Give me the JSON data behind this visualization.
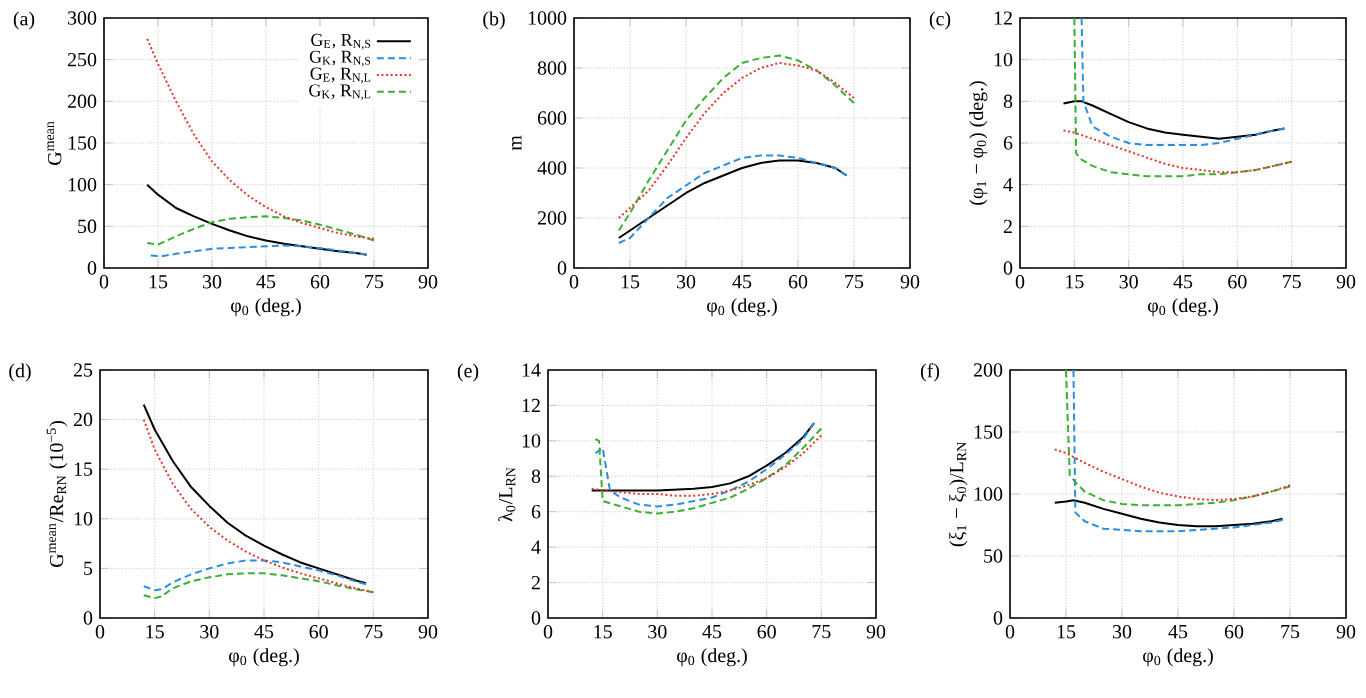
{
  "chart_data": [
    {
      "type": "line",
      "title": "(a)",
      "xlabel": "φ$_{0}$ (deg.)",
      "ylabel": "G$^{mean}$",
      "xlim": [
        0,
        90
      ],
      "ylim": [
        0,
        300
      ],
      "xticks": [
        0,
        15,
        30,
        45,
        60,
        75,
        90
      ],
      "yticks": [
        0,
        50,
        100,
        150,
        200,
        250,
        300
      ],
      "grid": true,
      "legend": "top right",
      "series": [
        {
          "name": "G$_{E}$, R$_{N,S}$",
          "color": "#000000",
          "line_style": "solid",
          "x": [
            12,
            15,
            20,
            25,
            30,
            35,
            40,
            45,
            50,
            55,
            60,
            65,
            70,
            73
          ],
          "values": [
            100,
            88,
            72,
            62,
            53,
            45,
            38,
            33,
            29,
            26,
            23,
            20,
            18,
            16
          ]
        },
        {
          "name": "G$_{K}$, R$_{N,S}$",
          "color": "#2b8ee0",
          "line_style": "dashed",
          "x": [
            13,
            16,
            20,
            25,
            30,
            35,
            40,
            45,
            50,
            55,
            60,
            65,
            70,
            73
          ],
          "values": [
            15,
            14,
            17,
            20,
            23,
            24,
            25,
            26,
            27,
            26,
            24,
            21,
            18,
            16
          ]
        },
        {
          "name": "G$_{E}$, R$_{N,L}$",
          "color": "#e8322a",
          "line_style": "dotted",
          "x": [
            12,
            15,
            20,
            25,
            30,
            35,
            40,
            45,
            50,
            55,
            60,
            65,
            70,
            75
          ],
          "values": [
            275,
            245,
            200,
            160,
            128,
            105,
            87,
            73,
            62,
            54,
            48,
            42,
            38,
            35
          ]
        },
        {
          "name": "G$_{K}$, R$_{N,L}$",
          "color": "#3cb034",
          "line_style": "dashed",
          "x": [
            12,
            15,
            20,
            25,
            30,
            35,
            40,
            45,
            50,
            55,
            60,
            65,
            70,
            75
          ],
          "values": [
            30,
            28,
            38,
            47,
            55,
            59,
            61,
            62,
            60,
            57,
            52,
            46,
            40,
            33
          ]
        }
      ]
    },
    {
      "type": "line",
      "title": "(b)",
      "xlabel": "φ$_{0}$ (deg.)",
      "ylabel": "m",
      "xlim": [
        0,
        90
      ],
      "ylim": [
        0,
        1000
      ],
      "xticks": [
        0,
        15,
        30,
        45,
        60,
        75,
        90
      ],
      "yticks": [
        0,
        200,
        400,
        600,
        800,
        1000
      ],
      "grid": true,
      "series": [
        {
          "color": "#000000",
          "line_style": "solid",
          "x": [
            12,
            15,
            20,
            25,
            30,
            35,
            40,
            45,
            50,
            55,
            60,
            65,
            70,
            73
          ],
          "values": [
            120,
            150,
            200,
            250,
            300,
            340,
            370,
            400,
            420,
            430,
            430,
            420,
            400,
            370
          ]
        },
        {
          "color": "#2b8ee0",
          "line_style": "dashed",
          "x": [
            12,
            15,
            20,
            25,
            30,
            35,
            40,
            45,
            50,
            55,
            60,
            65,
            70,
            73
          ],
          "values": [
            100,
            120,
            200,
            280,
            330,
            380,
            410,
            440,
            450,
            450,
            440,
            420,
            400,
            370
          ]
        },
        {
          "color": "#e8322a",
          "line_style": "dotted",
          "x": [
            12,
            15,
            20,
            25,
            30,
            35,
            40,
            45,
            50,
            55,
            60,
            65,
            70,
            75
          ],
          "values": [
            200,
            240,
            310,
            410,
            520,
            620,
            700,
            760,
            800,
            820,
            810,
            790,
            740,
            680
          ]
        },
        {
          "color": "#3cb034",
          "line_style": "dashed",
          "x": [
            12,
            15,
            20,
            25,
            30,
            35,
            40,
            45,
            50,
            55,
            60,
            65,
            70,
            75
          ],
          "values": [
            150,
            220,
            350,
            470,
            590,
            680,
            760,
            820,
            840,
            850,
            830,
            790,
            730,
            660
          ]
        }
      ]
    },
    {
      "type": "line",
      "title": "(c)",
      "xlabel": "φ$_{0}$ (deg.)",
      "ylabel": "(φ$_{1}$ − φ$_{0}$) (deg.)",
      "xlim": [
        0,
        90
      ],
      "ylim": [
        0,
        12
      ],
      "xticks": [
        0,
        15,
        30,
        45,
        60,
        75,
        90
      ],
      "yticks": [
        0,
        2,
        4,
        6,
        8,
        10,
        12
      ],
      "grid": true,
      "series": [
        {
          "color": "#000000",
          "line_style": "solid",
          "x": [
            12,
            15,
            17,
            20,
            25,
            30,
            35,
            40,
            45,
            50,
            55,
            60,
            65,
            70,
            73
          ],
          "values": [
            7.9,
            8.0,
            8.0,
            7.8,
            7.4,
            7.0,
            6.7,
            6.5,
            6.4,
            6.3,
            6.2,
            6.3,
            6.4,
            6.6,
            6.7
          ]
        },
        {
          "color": "#2b8ee0",
          "line_style": "dashed",
          "x": [
            17,
            17.5,
            20,
            25,
            30,
            35,
            40,
            45,
            50,
            55,
            60,
            65,
            70,
            73
          ],
          "values": [
            12,
            8,
            6.8,
            6.3,
            6.0,
            5.9,
            5.9,
            5.9,
            5.9,
            6.0,
            6.2,
            6.4,
            6.6,
            6.7
          ]
        },
        {
          "color": "#e8322a",
          "line_style": "dotted",
          "x": [
            12,
            15,
            20,
            25,
            30,
            35,
            40,
            45,
            50,
            55,
            60,
            65,
            70,
            75
          ],
          "values": [
            6.6,
            6.5,
            6.2,
            5.9,
            5.6,
            5.3,
            5.0,
            4.8,
            4.7,
            4.6,
            4.6,
            4.7,
            4.9,
            5.1
          ]
        },
        {
          "color": "#3cb034",
          "line_style": "dashed",
          "x": [
            15,
            15.5,
            17,
            20,
            25,
            30,
            35,
            40,
            45,
            50,
            55,
            60,
            65,
            70,
            75
          ],
          "values": [
            12,
            5.5,
            5.2,
            4.9,
            4.6,
            4.5,
            4.4,
            4.4,
            4.4,
            4.5,
            4.5,
            4.6,
            4.7,
            4.9,
            5.1
          ]
        }
      ]
    },
    {
      "type": "line",
      "title": "(d)",
      "xlabel": "φ$_{0}$ (deg.)",
      "ylabel": "G$^{mean}$/Re$_{RN}$ (10$^{−5}$)",
      "xlim": [
        0,
        90
      ],
      "ylim": [
        0,
        25
      ],
      "xticks": [
        0,
        15,
        30,
        45,
        60,
        75,
        90
      ],
      "yticks": [
        0,
        5,
        10,
        15,
        20,
        25
      ],
      "grid": true,
      "series": [
        {
          "color": "#000000",
          "line_style": "solid",
          "x": [
            12,
            15,
            20,
            25,
            30,
            35,
            40,
            45,
            50,
            55,
            60,
            65,
            70,
            73
          ],
          "values": [
            21.5,
            19,
            15.8,
            13.2,
            11.3,
            9.6,
            8.3,
            7.3,
            6.4,
            5.6,
            5.0,
            4.4,
            3.8,
            3.5
          ]
        },
        {
          "color": "#2b8ee0",
          "line_style": "dashed",
          "x": [
            12,
            15,
            17,
            20,
            25,
            30,
            35,
            40,
            45,
            50,
            55,
            60,
            65,
            70,
            73
          ],
          "values": [
            3.2,
            2.8,
            2.9,
            3.6,
            4.4,
            5.0,
            5.5,
            5.8,
            5.8,
            5.6,
            5.2,
            4.8,
            4.3,
            3.7,
            3.4
          ]
        },
        {
          "color": "#e8322a",
          "line_style": "dotted",
          "x": [
            12,
            15,
            20,
            25,
            30,
            35,
            40,
            45,
            50,
            55,
            60,
            65,
            70,
            75
          ],
          "values": [
            20,
            17,
            13.5,
            11,
            9.2,
            7.8,
            6.7,
            5.8,
            5.1,
            4.5,
            4.0,
            3.5,
            3.0,
            2.6
          ]
        },
        {
          "color": "#3cb034",
          "line_style": "dashed",
          "x": [
            12,
            15,
            17,
            20,
            25,
            30,
            35,
            40,
            45,
            50,
            55,
            60,
            65,
            70,
            75
          ],
          "values": [
            2.3,
            2.0,
            2.2,
            3.0,
            3.7,
            4.1,
            4.4,
            4.5,
            4.5,
            4.3,
            4.0,
            3.7,
            3.3,
            2.9,
            2.6
          ]
        }
      ]
    },
    {
      "type": "line",
      "title": "(e)",
      "xlabel": "φ$_{0}$ (deg.)",
      "ylabel": "λ$_{0}$/L$_{RN}$",
      "xlim": [
        0,
        90
      ],
      "ylim": [
        0,
        14
      ],
      "xticks": [
        0,
        15,
        30,
        45,
        60,
        75,
        90
      ],
      "yticks": [
        0,
        2,
        4,
        6,
        8,
        10,
        12,
        14
      ],
      "grid": true,
      "series": [
        {
          "color": "#000000",
          "line_style": "solid",
          "x": [
            12,
            15,
            20,
            30,
            40,
            45,
            50,
            55,
            60,
            65,
            70,
            73
          ],
          "values": [
            7.2,
            7.2,
            7.2,
            7.2,
            7.3,
            7.4,
            7.6,
            8.0,
            8.6,
            9.3,
            10.2,
            11.0
          ]
        },
        {
          "color": "#2b8ee0",
          "line_style": "dashed",
          "x": [
            13,
            15,
            17,
            20,
            25,
            30,
            35,
            40,
            45,
            50,
            55,
            60,
            65,
            70,
            73
          ],
          "values": [
            9.3,
            9.6,
            7.2,
            6.8,
            6.4,
            6.3,
            6.4,
            6.6,
            6.8,
            7.2,
            7.7,
            8.4,
            9.2,
            10.1,
            11.0
          ]
        },
        {
          "color": "#e8322a",
          "line_style": "dotted",
          "x": [
            12,
            15,
            20,
            25,
            30,
            35,
            40,
            45,
            50,
            55,
            60,
            65,
            70,
            75
          ],
          "values": [
            7.3,
            7.2,
            7.1,
            7.0,
            7.0,
            6.9,
            6.9,
            7.0,
            7.2,
            7.5,
            7.9,
            8.5,
            9.3,
            10.3
          ]
        },
        {
          "color": "#3cb034",
          "line_style": "dashed",
          "x": [
            13,
            14,
            15,
            20,
            25,
            30,
            35,
            40,
            45,
            50,
            55,
            60,
            65,
            70,
            75
          ],
          "values": [
            10.1,
            10.0,
            6.6,
            6.3,
            6.0,
            5.9,
            6.0,
            6.2,
            6.5,
            6.8,
            7.3,
            7.9,
            8.6,
            9.6,
            10.7
          ]
        }
      ]
    },
    {
      "type": "line",
      "title": "(f)",
      "xlabel": "φ$_{0}$ (deg.)",
      "ylabel": "(ξ$_{1}$ − ξ$_{0}$)/L$_{RN}$",
      "xlim": [
        0,
        90
      ],
      "ylim": [
        0,
        200
      ],
      "xticks": [
        0,
        15,
        30,
        45,
        60,
        75,
        90
      ],
      "yticks": [
        0,
        50,
        100,
        150,
        200
      ],
      "grid": true,
      "series": [
        {
          "color": "#000000",
          "line_style": "solid",
          "x": [
            12,
            15,
            17,
            20,
            25,
            30,
            35,
            40,
            45,
            50,
            55,
            60,
            65,
            70,
            73
          ],
          "values": [
            93,
            94,
            95,
            93,
            88,
            84,
            80,
            77,
            75,
            74,
            74,
            75,
            76,
            78,
            80
          ]
        },
        {
          "color": "#2b8ee0",
          "line_style": "dashed",
          "x": [
            17,
            17.5,
            20,
            25,
            30,
            35,
            40,
            45,
            50,
            55,
            60,
            65,
            70,
            73
          ],
          "values": [
            200,
            85,
            78,
            72,
            71,
            70,
            70,
            70,
            71,
            72,
            73,
            75,
            77,
            79
          ]
        },
        {
          "color": "#e8322a",
          "line_style": "dotted",
          "x": [
            12,
            15,
            20,
            25,
            30,
            35,
            40,
            45,
            50,
            55,
            60,
            65,
            70,
            75
          ],
          "values": [
            136,
            133,
            125,
            118,
            112,
            106,
            101,
            98,
            96,
            95,
            96,
            98,
            102,
            107
          ]
        },
        {
          "color": "#3cb034",
          "line_style": "dashed",
          "x": [
            15,
            16,
            18,
            20,
            25,
            30,
            35,
            40,
            45,
            50,
            55,
            60,
            65,
            70,
            75
          ],
          "values": [
            200,
            115,
            108,
            102,
            95,
            92,
            91,
            91,
            91,
            92,
            93,
            95,
            98,
            102,
            106
          ]
        }
      ]
    }
  ]
}
